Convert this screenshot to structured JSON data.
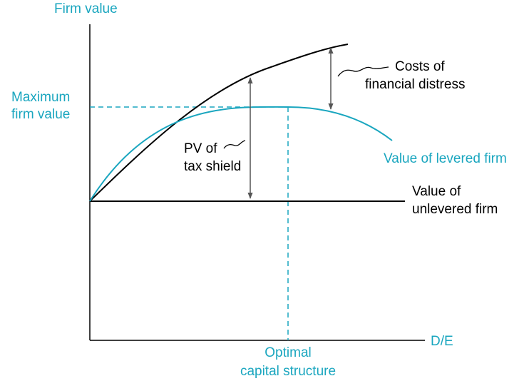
{
  "colors": {
    "accent": "#1aa6bf",
    "ink": "#000000",
    "arrow": "#555555"
  },
  "axes": {
    "y_label": "Firm value",
    "x_label": "D/E"
  },
  "labels": {
    "max_firm_value_line1": "Maximum",
    "max_firm_value_line2": "firm value",
    "optimal_line1": "Optimal",
    "optimal_line2": "capital structure",
    "costs_line1": "Costs of",
    "costs_line2": "financial distress",
    "levered_firm": "Value of levered firm",
    "unlevered_line1": "Value of",
    "unlevered_line2": "unlevered firm",
    "pv_line1": "PV of",
    "pv_line2": "tax shield"
  }
}
